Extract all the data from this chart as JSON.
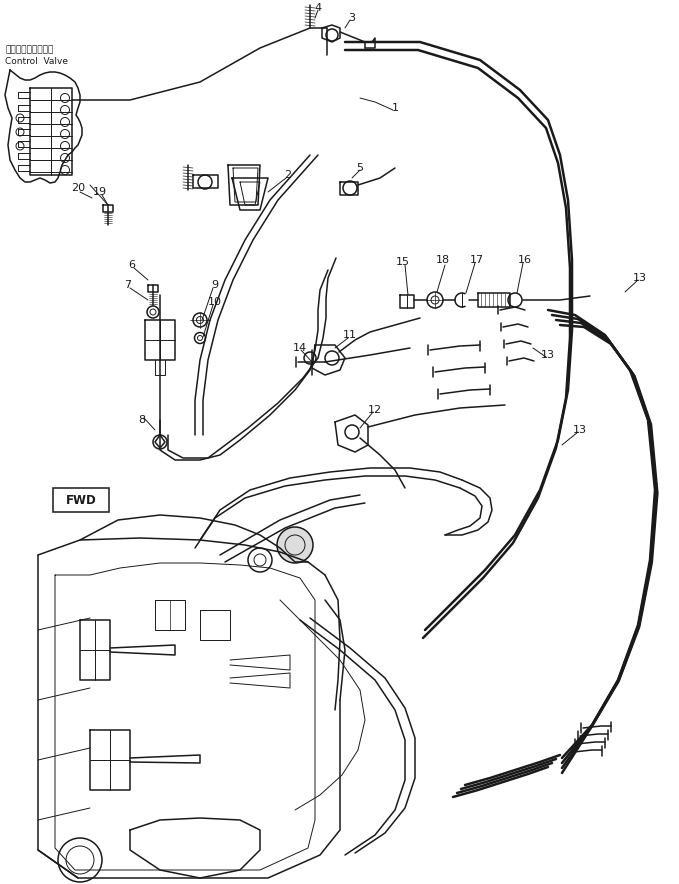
{
  "bg_color": "#ffffff",
  "line_color": "#1a1a1a",
  "figsize": [
    6.79,
    8.84
  ],
  "dpi": 100,
  "labels": {
    "control_valve_jp": "コントロールバルブ",
    "control_valve_en": "Control  Valve",
    "fwd": "FWD"
  }
}
